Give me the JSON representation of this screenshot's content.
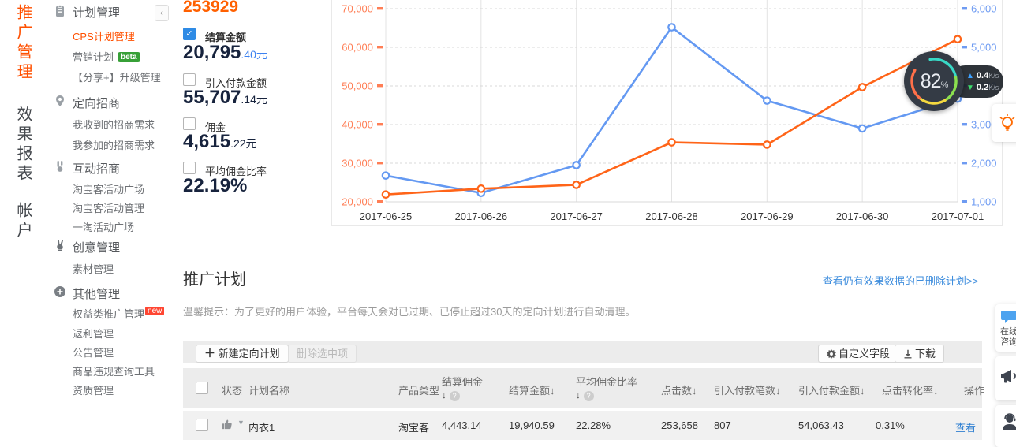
{
  "vertical_tabs": {
    "items": [
      {
        "label": "推广管理",
        "active": true
      },
      {
        "label": "效果报表",
        "active": false
      },
      {
        "label": "帐户",
        "active": false
      }
    ]
  },
  "sidebar": {
    "collapse_icon": "‹",
    "sections": [
      {
        "title": "计划管理",
        "icon": "clipboard-icon",
        "items": [
          {
            "label": "CPS计划管理"
          },
          {
            "label": "营销计划",
            "badge": "beta"
          },
          {
            "label": "【分享+】升级管理"
          }
        ]
      },
      {
        "title": "定向招商",
        "icon": "pin-icon",
        "items": [
          {
            "label": "我收到的招商需求"
          },
          {
            "label": "我参加的招商需求"
          }
        ]
      },
      {
        "title": "互动招商",
        "icon": "gesture-icon",
        "items": [
          {
            "label": "淘宝客活动广场"
          },
          {
            "label": "淘宝客活动管理"
          },
          {
            "label": "一淘活动广场"
          }
        ]
      },
      {
        "title": "创意管理",
        "icon": "hand-icon",
        "items": [
          {
            "label": "素材管理"
          }
        ]
      },
      {
        "title": "其他管理",
        "icon": "plus-circle-icon",
        "items": [
          {
            "label": "权益类推广管理",
            "badge": "new"
          },
          {
            "label": "返利管理"
          },
          {
            "label": "公告管理"
          },
          {
            "label": "商品违规查询工具"
          },
          {
            "label": "资质管理"
          }
        ]
      }
    ]
  },
  "metrics": {
    "top_value": "253929",
    "items": [
      {
        "label": "结算金额",
        "value_main": "20,795",
        "value_sub": ".40元",
        "checked": true
      },
      {
        "label": "引入付款金额",
        "value_main": "55,707",
        "value_sub": ".14元",
        "checked": false
      },
      {
        "label": "佣金",
        "value_main": "4,615",
        "value_sub": ".22元",
        "checked": false
      },
      {
        "label": "平均佣金比率",
        "value_main": "22.19%",
        "value_sub": "",
        "checked": false
      }
    ]
  },
  "chart_data": {
    "type": "line",
    "x": [
      "2017-06-25",
      "2017-06-26",
      "2017-06-27",
      "2017-06-28",
      "2017-06-29",
      "2017-06-30",
      "2017-07-01"
    ],
    "series": [
      {
        "name": "结算金额",
        "axis": "right",
        "color": "#6499f2",
        "values": [
          1680,
          1230,
          1950,
          5520,
          3620,
          2900,
          3670
        ]
      },
      {
        "name": "点击数",
        "axis": "left",
        "color": "#ff6418",
        "values": [
          21900,
          23400,
          24400,
          35400,
          34800,
          49700,
          62100
        ]
      }
    ],
    "left_axis": {
      "min": 20000,
      "max": 70000,
      "step": 10000,
      "color": "#ff7e55",
      "ticks": [
        "70,000",
        "60,000",
        "50,000",
        "40,000",
        "30,000",
        "20,000"
      ]
    },
    "right_axis": {
      "min": 1000,
      "max": 6000,
      "step": 1000,
      "color": "#6e9bf2",
      "ticks": [
        "6,000",
        "5,000",
        "4,000",
        "3,000",
        "2,000",
        "1,000"
      ]
    },
    "grid": "horizontal dashed, vertical solid",
    "legend": "none"
  },
  "speed_widget": {
    "percent": "82",
    "percent_unit": "%",
    "up_value": "0.4",
    "up_unit": "K/s",
    "down_value": "0.2",
    "down_unit": "K/s"
  },
  "plans": {
    "title": "推广计划",
    "deleted_link": "查看仍有效果数据的已删除计划>>",
    "tip": "温馨提示：为了更好的用户体验，平台每天会对已过期、已停止超过30天的定向计划进行自动清理。",
    "toolbar": {
      "new_button": "新建定向计划",
      "delete_button": "删除选中项",
      "custom_fields_button": "自定义字段",
      "download_button": "下载"
    },
    "table": {
      "headers": {
        "status": "状态",
        "plan_name": "计划名称",
        "product_type": "产品类型",
        "settle_commission": "结算佣金",
        "settle_amount": "结算金额↓",
        "avg_rate_line1": "平均佣金比率",
        "clicks": "点击数↓",
        "pay_orders": "引入付款笔数↓",
        "pay_amount": "引入付款金额↓",
        "ctr": "点击转化率↓",
        "action": "操作",
        "sort_arrow": "↓",
        "help": "?"
      },
      "rows": [
        {
          "name": "内衣1",
          "product_type": "淘宝客",
          "settle_commission": "4,443.14",
          "settle_amount": "19,940.59",
          "avg_rate": "22.28%",
          "clicks": "253,658",
          "pay_orders": "807",
          "pay_amount": "54,063.43",
          "ctr": "0.31%",
          "action": "查看"
        }
      ]
    }
  },
  "floating": {
    "chat_line1": "在线",
    "chat_line2": "咨询"
  }
}
